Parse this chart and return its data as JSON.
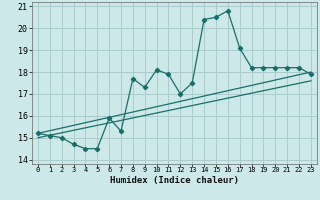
{
  "title": "",
  "xlabel": "Humidex (Indice chaleur)",
  "bg_color": "#cce8e8",
  "grid_color": "#aacccc",
  "line_color": "#1a6e6a",
  "xlim": [
    -0.5,
    23.5
  ],
  "ylim": [
    13.8,
    21.2
  ],
  "xticks": [
    0,
    1,
    2,
    3,
    4,
    5,
    6,
    7,
    8,
    9,
    10,
    11,
    12,
    13,
    14,
    15,
    16,
    17,
    18,
    19,
    20,
    21,
    22,
    23
  ],
  "yticks": [
    14,
    15,
    16,
    17,
    18,
    19,
    20,
    21
  ],
  "scatter_x": [
    0,
    1,
    2,
    3,
    4,
    5,
    6,
    7,
    8,
    9,
    10,
    11,
    12,
    13,
    14,
    15,
    16,
    17,
    18,
    19,
    20,
    21,
    22,
    23
  ],
  "scatter_y": [
    15.2,
    15.1,
    15.0,
    14.7,
    14.5,
    14.5,
    15.9,
    15.3,
    17.7,
    17.3,
    18.1,
    17.9,
    17.0,
    17.5,
    20.4,
    20.5,
    20.8,
    19.1,
    18.2,
    18.2,
    18.2,
    18.2,
    18.2,
    17.9
  ],
  "line1_x": [
    0,
    23
  ],
  "line1_y": [
    15.2,
    18.0
  ],
  "line2_x": [
    0,
    23
  ],
  "line2_y": [
    15.0,
    17.6
  ]
}
